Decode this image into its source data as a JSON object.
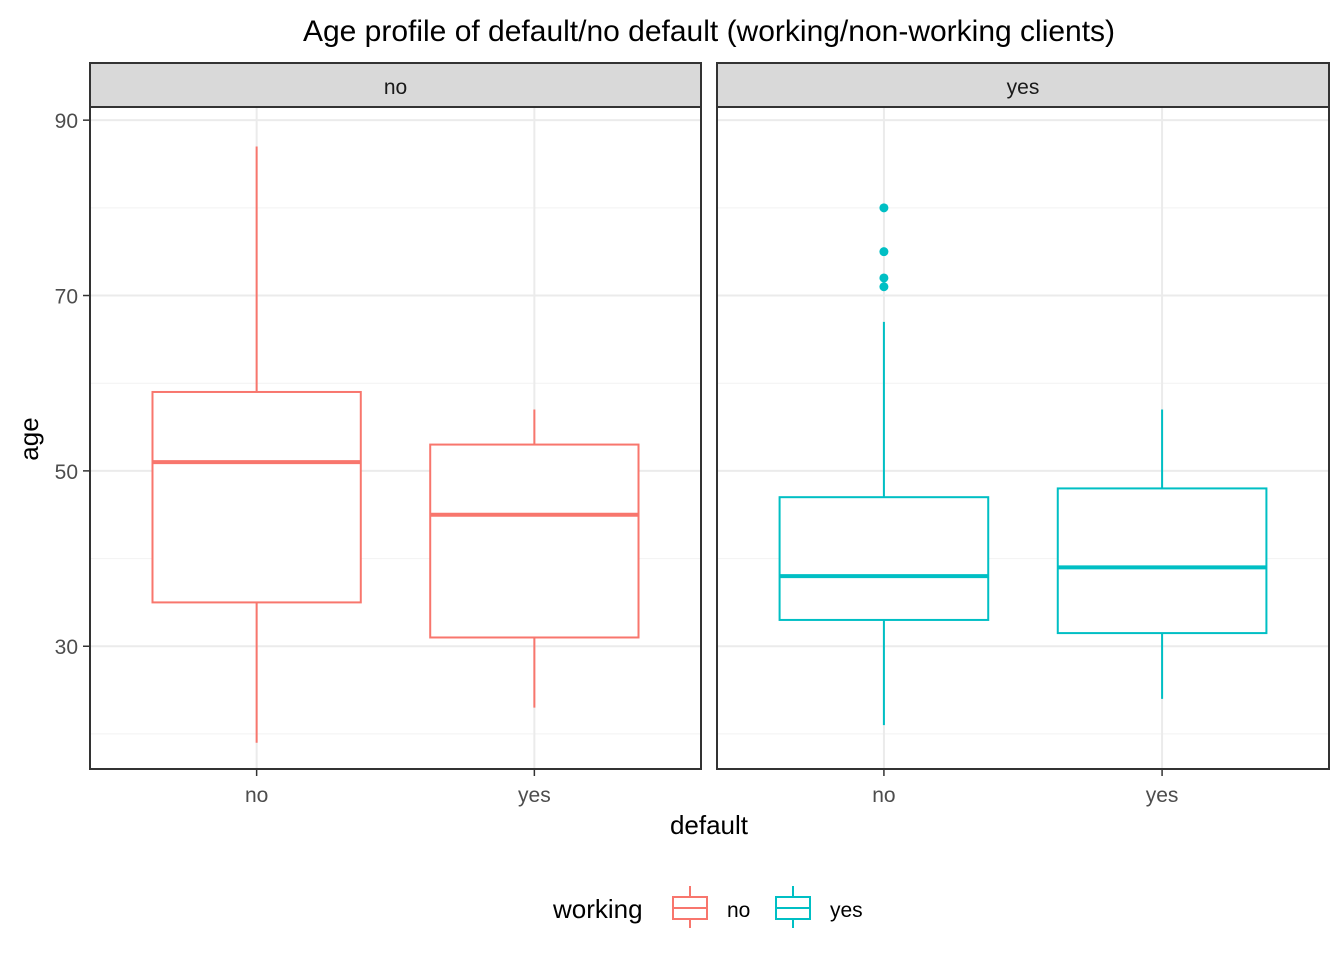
{
  "chart_data": {
    "type": "boxplot",
    "title": "Age profile of default/no default (working/non-working clients)",
    "xlabel": "default",
    "ylabel": "age",
    "facet_by": "working",
    "facets": [
      {
        "label": "no",
        "color": "#F8766D",
        "categories": [
          "no",
          "yes"
        ],
        "boxes": [
          {
            "category": "no",
            "min": 19,
            "q1": 35,
            "median": 51,
            "q3": 59,
            "max": 87,
            "outliers": []
          },
          {
            "category": "yes",
            "min": 23,
            "q1": 31,
            "median": 45,
            "q3": 53,
            "max": 57,
            "outliers": []
          }
        ]
      },
      {
        "label": "yes",
        "color": "#00BFC4",
        "categories": [
          "no",
          "yes"
        ],
        "boxes": [
          {
            "category": "no",
            "min": 21,
            "q1": 33,
            "median": 38,
            "q3": 47,
            "max": 67,
            "outliers": [
              71,
              72,
              75,
              80
            ]
          },
          {
            "category": "yes",
            "min": 24,
            "q1": 31.5,
            "median": 39,
            "q3": 48,
            "max": 57,
            "outliers": []
          }
        ]
      }
    ],
    "ylim": [
      16,
      91.5
    ],
    "y_ticks": [
      30,
      50,
      70,
      90
    ],
    "y_minor_ticks": [
      20,
      40,
      60,
      80
    ],
    "grid": true,
    "legend": {
      "title": "working",
      "position": "bottom",
      "items": [
        {
          "label": "no",
          "color": "#F8766D"
        },
        {
          "label": "yes",
          "color": "#00BFC4"
        }
      ]
    }
  }
}
